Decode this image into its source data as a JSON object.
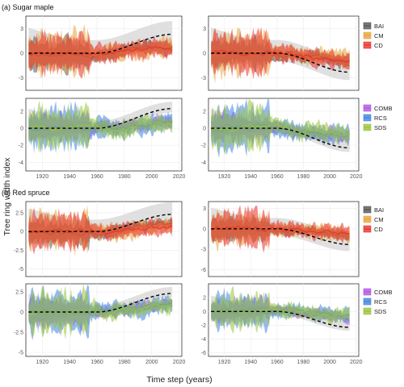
{
  "figure": {
    "panel_a_title": "(a) Sugar maple",
    "panel_b_title": "(b) Red spruce",
    "ylabel": "Tree ring width index",
    "xlabel": "Time step (years)"
  },
  "colors": {
    "BAI": "#555555",
    "CM": "#e8a33a",
    "CD": "#e8322b",
    "COMB": "#b055e0",
    "RCS": "#3f84e0",
    "SDS": "#98c43a",
    "trend": "#000000",
    "envelope": "#d6d6d6"
  },
  "legends": {
    "methods": [
      "BAI",
      "CM",
      "CD"
    ],
    "combos": [
      "COMB",
      "RCS",
      "SDS"
    ]
  },
  "x_ticks": [
    "1920",
    "1940",
    "1960",
    "1980",
    "2000",
    "2020"
  ],
  "chart_data": [
    {
      "type": "area",
      "panel": "a-top-left",
      "species": "Sugar maple",
      "trend": "increasing",
      "x": [
        1910,
        2015
      ],
      "ylim": [
        -4.5,
        4.5
      ],
      "yticks": [
        -3,
        0,
        3
      ],
      "series": [
        {
          "name": "BAI"
        },
        {
          "name": "CM"
        },
        {
          "name": "CD"
        }
      ],
      "trend_line": {
        "x": [
          1910,
          1960,
          2015
        ],
        "y": [
          0.0,
          0.0,
          2.3
        ]
      }
    },
    {
      "type": "area",
      "panel": "a-top-right",
      "species": "Sugar maple",
      "trend": "decreasing",
      "x": [
        1910,
        2015
      ],
      "ylim": [
        -4.5,
        4.5
      ],
      "yticks": [
        -3,
        0,
        3
      ],
      "series": [
        {
          "name": "BAI"
        },
        {
          "name": "CM"
        },
        {
          "name": "CD"
        }
      ],
      "trend_line": {
        "x": [
          1910,
          1960,
          2015
        ],
        "y": [
          0.0,
          0.0,
          -2.3
        ]
      }
    },
    {
      "type": "area",
      "panel": "a-bottom-left",
      "species": "Sugar maple",
      "trend": "increasing",
      "x": [
        1910,
        2015
      ],
      "ylim": [
        -5,
        3.5
      ],
      "yticks": [
        -4,
        -2,
        0,
        2
      ],
      "series": [
        {
          "name": "COMB"
        },
        {
          "name": "RCS"
        },
        {
          "name": "SDS"
        }
      ],
      "trend_line": {
        "x": [
          1910,
          1960,
          2015
        ],
        "y": [
          0.0,
          0.0,
          2.3
        ]
      }
    },
    {
      "type": "area",
      "panel": "a-bottom-right",
      "species": "Sugar maple",
      "trend": "decreasing",
      "x": [
        1910,
        2015
      ],
      "ylim": [
        -5,
        3.5
      ],
      "yticks": [
        -4,
        -2,
        0,
        2
      ],
      "series": [
        {
          "name": "COMB"
        },
        {
          "name": "RCS"
        },
        {
          "name": "SDS"
        }
      ],
      "trend_line": {
        "x": [
          1910,
          1960,
          2015
        ],
        "y": [
          0.0,
          0.0,
          -2.3
        ]
      }
    },
    {
      "type": "area",
      "panel": "b-top-left",
      "species": "Red spruce",
      "trend": "increasing",
      "x": [
        1910,
        2015
      ],
      "ylim": [
        -6,
        4
      ],
      "yticks": [
        -5.0,
        -2.5,
        0.0,
        2.5
      ],
      "series": [
        {
          "name": "BAI"
        },
        {
          "name": "CM"
        },
        {
          "name": "CD"
        }
      ],
      "trend_line": {
        "x": [
          1910,
          1960,
          2015
        ],
        "y": [
          0.0,
          0.0,
          2.3
        ]
      }
    },
    {
      "type": "area",
      "panel": "b-top-right",
      "species": "Red spruce",
      "trend": "decreasing",
      "x": [
        1910,
        2015
      ],
      "ylim": [
        -7,
        4
      ],
      "yticks": [
        -6,
        -3,
        0,
        3
      ],
      "series": [
        {
          "name": "BAI"
        },
        {
          "name": "CM"
        },
        {
          "name": "CD"
        }
      ],
      "trend_line": {
        "x": [
          1910,
          1960,
          2015
        ],
        "y": [
          0.0,
          0.0,
          -2.3
        ]
      }
    },
    {
      "type": "area",
      "panel": "b-bottom-left",
      "species": "Red spruce",
      "trend": "increasing",
      "x": [
        1910,
        2015
      ],
      "ylim": [
        -5.5,
        3.5
      ],
      "yticks": [
        -5.0,
        -2.5,
        0.0,
        2.5
      ],
      "series": [
        {
          "name": "COMB"
        },
        {
          "name": "RCS"
        },
        {
          "name": "SDS"
        }
      ],
      "trend_line": {
        "x": [
          1910,
          1960,
          2015
        ],
        "y": [
          0.0,
          0.0,
          2.3
        ]
      }
    },
    {
      "type": "area",
      "panel": "b-bottom-right",
      "species": "Red spruce",
      "trend": "decreasing",
      "x": [
        1910,
        2015
      ],
      "ylim": [
        -6.5,
        4
      ],
      "yticks": [
        -6,
        -4,
        -2,
        0,
        2
      ],
      "series": [
        {
          "name": "COMB"
        },
        {
          "name": "RCS"
        },
        {
          "name": "SDS"
        }
      ],
      "trend_line": {
        "x": [
          1910,
          1960,
          2015
        ],
        "y": [
          0.0,
          0.0,
          -2.3
        ]
      }
    }
  ]
}
